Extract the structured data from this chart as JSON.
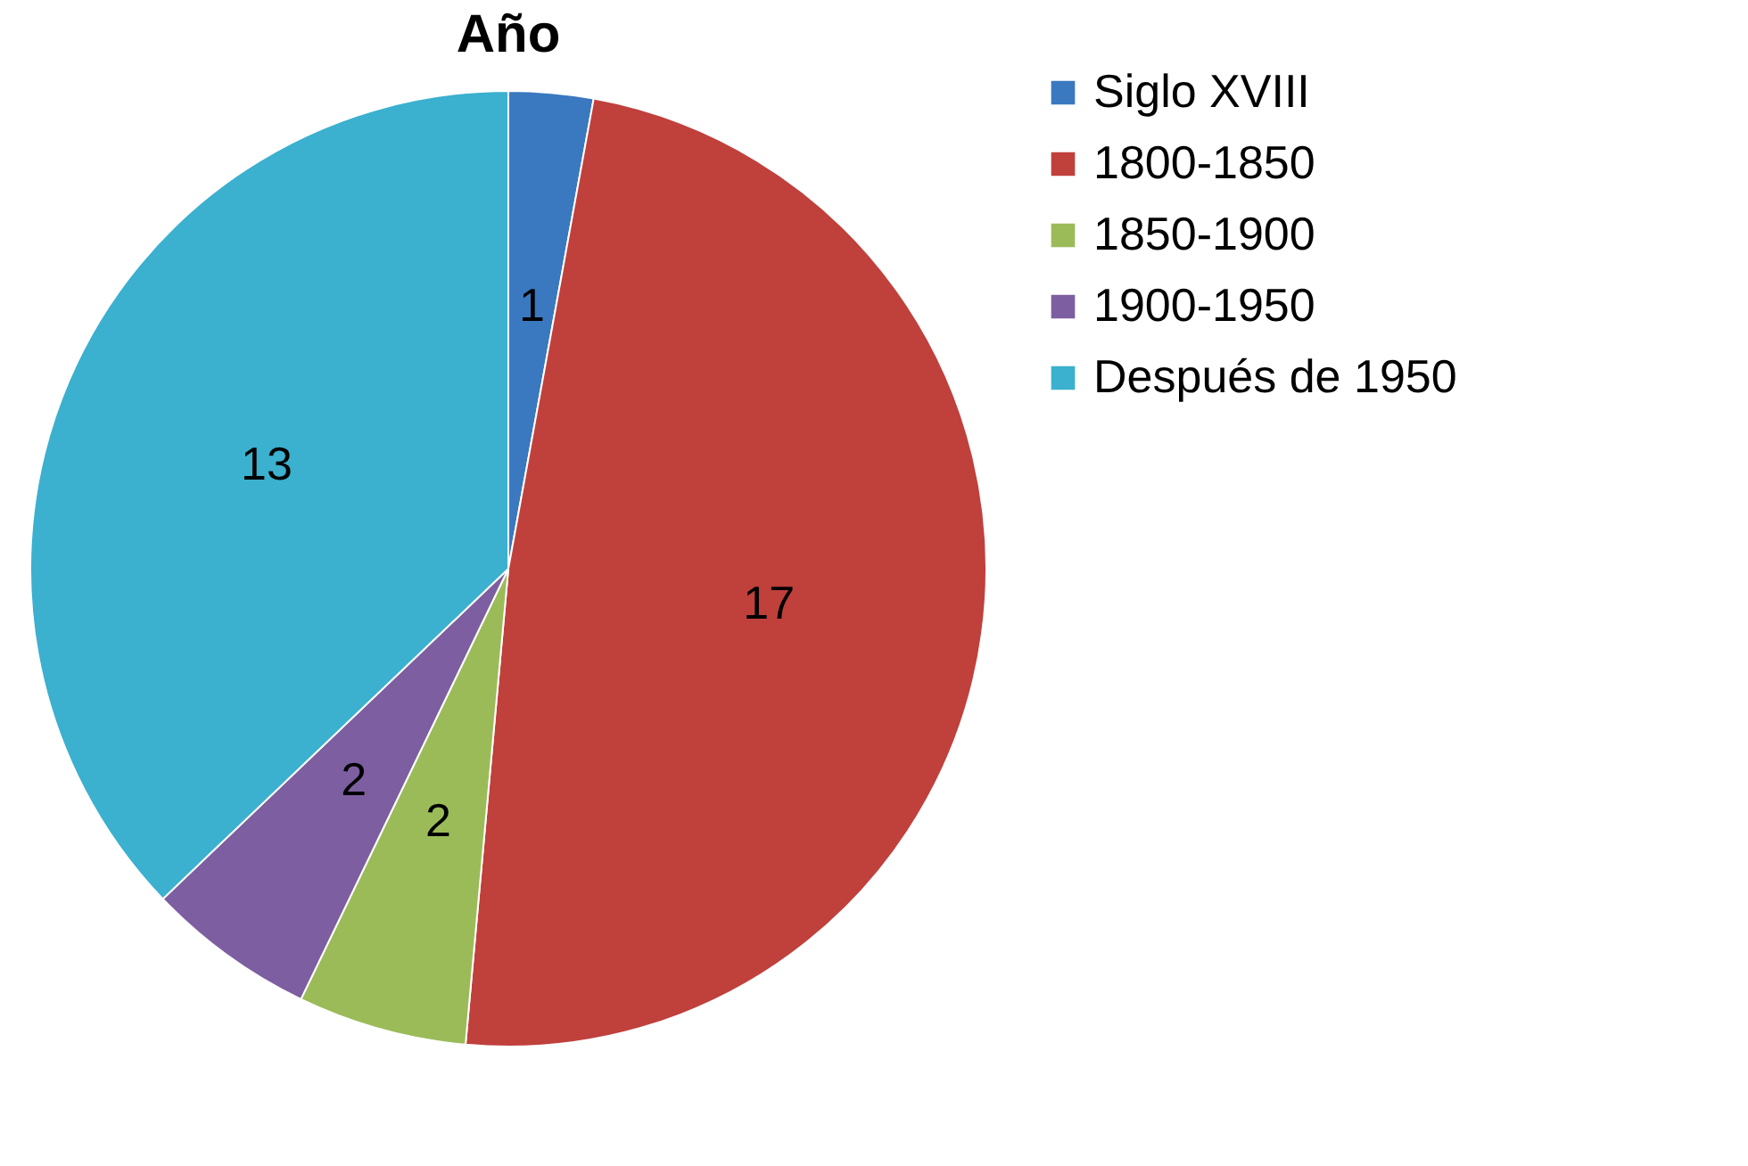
{
  "chart_data": {
    "type": "pie",
    "title": "Año",
    "categories": [
      "Siglo XVIII",
      "1800-1850",
      "1850-1900",
      "1900-1950",
      "Después de 1950"
    ],
    "values": [
      1,
      17,
      2,
      2,
      13
    ],
    "colors": [
      "#3a78c0",
      "#c0403c",
      "#9bbb59",
      "#7d5ea0",
      "#3bb0cf"
    ],
    "data_labels": true,
    "legend": "right"
  }
}
